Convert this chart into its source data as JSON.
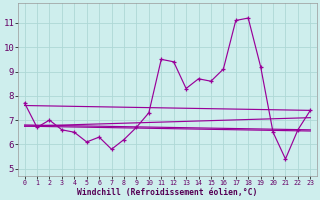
{
  "bg_color": "#ceeeed",
  "grid_color": "#aed8d6",
  "line_color": "#990099",
  "xlabel": "Windchill (Refroidissement éolien,°C)",
  "ylabel_ticks": [
    5,
    6,
    7,
    8,
    9,
    10,
    11
  ],
  "xlim": [
    -0.5,
    23.5
  ],
  "ylim": [
    4.7,
    11.8
  ],
  "x": [
    0,
    1,
    2,
    3,
    4,
    5,
    6,
    7,
    8,
    9,
    10,
    11,
    12,
    13,
    14,
    15,
    16,
    17,
    18,
    19,
    20,
    21,
    22,
    23
  ],
  "line_jagged": [
    7.7,
    6.7,
    7.0,
    6.6,
    6.5,
    6.1,
    6.3,
    5.8,
    6.2,
    6.7,
    7.3,
    9.5,
    9.4,
    8.3,
    8.7,
    8.6,
    9.1,
    11.1,
    11.2,
    9.2,
    6.5,
    5.4,
    6.6,
    7.4
  ],
  "trend1_x": [
    0,
    23
  ],
  "trend1_y": [
    7.6,
    7.4
  ],
  "trend2_x": [
    0,
    23
  ],
  "trend2_y": [
    6.75,
    7.1
  ],
  "trend3_x": [
    0,
    23
  ],
  "trend3_y": [
    6.75,
    6.55
  ],
  "trend4_x": [
    0,
    23
  ],
  "trend4_y": [
    6.8,
    6.6
  ]
}
